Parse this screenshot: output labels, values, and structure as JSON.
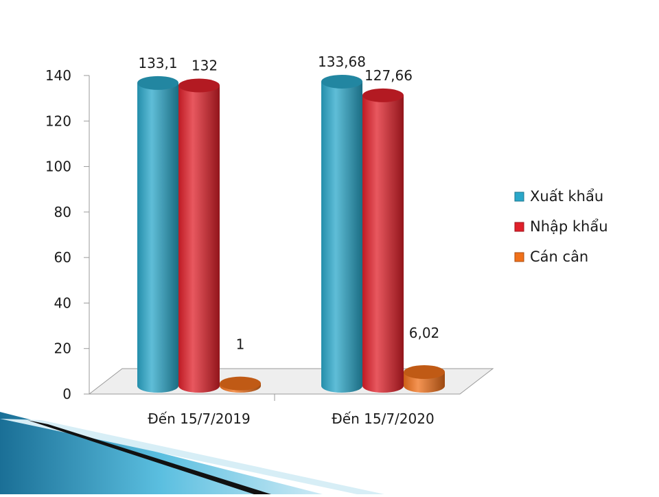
{
  "chart_data": {
    "type": "bar",
    "style": "3d-cylinder",
    "categories": [
      "Đến 15/7/2019",
      "Đến 15/7/2020"
    ],
    "series": [
      {
        "name": "Xuất khẩu",
        "values": [
          133.1,
          133.68
        ],
        "labels": [
          "133,1",
          "133,68"
        ],
        "color": "#2aa7c9"
      },
      {
        "name": "Nhập khẩu",
        "values": [
          132,
          127.66
        ],
        "labels": [
          "132",
          "127,66"
        ],
        "color": "#e0202a"
      },
      {
        "name": "Cán cân",
        "values": [
          1,
          6.02
        ],
        "labels": [
          "1",
          "6,02"
        ],
        "color": "#f0701a"
      }
    ],
    "y_ticks": [
      "0",
      "20",
      "40",
      "60",
      "80",
      "100",
      "120",
      "140"
    ],
    "ylim": [
      0,
      140
    ],
    "grid": false,
    "legend_position": "right"
  },
  "colors": {
    "decoration_blue": "#1f7fa8",
    "decoration_dark": "#111111",
    "floor": "#e8e8e8"
  }
}
